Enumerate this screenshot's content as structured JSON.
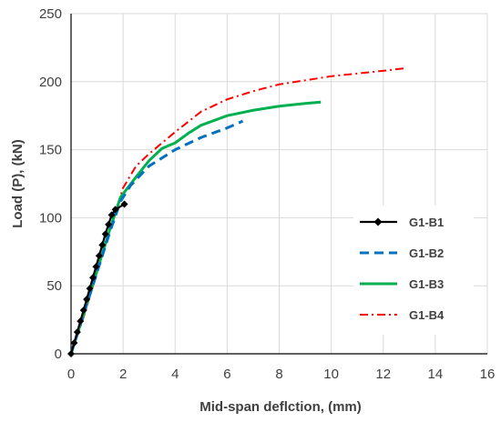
{
  "chart_data": {
    "type": "line",
    "title": "",
    "xlabel": "Mid-span deflction, (mm)",
    "ylabel": "Load (P), (kN)",
    "xlim": [
      0,
      16
    ],
    "ylim": [
      0,
      250
    ],
    "xticks": [
      0,
      2,
      4,
      6,
      8,
      10,
      12,
      14,
      16
    ],
    "yticks": [
      0,
      50,
      100,
      150,
      200,
      250
    ],
    "xtick_labels": [
      "0",
      "2",
      "4",
      "6",
      "8",
      "10",
      "12",
      "14",
      "16"
    ],
    "ytick_labels": [
      "0",
      "50",
      "100",
      "150",
      "200",
      "250"
    ],
    "grid": true,
    "legend_position": "center-right",
    "series": [
      {
        "name": "G1-B1",
        "color": "#000000",
        "style": "solid-diamond",
        "points": [
          [
            0,
            0
          ],
          [
            0.12,
            8
          ],
          [
            0.24,
            16
          ],
          [
            0.36,
            24
          ],
          [
            0.48,
            32
          ],
          [
            0.6,
            40
          ],
          [
            0.72,
            48
          ],
          [
            0.84,
            56
          ],
          [
            0.96,
            64
          ],
          [
            1.08,
            72
          ],
          [
            1.2,
            80
          ],
          [
            1.32,
            88
          ],
          [
            1.44,
            95
          ],
          [
            1.56,
            102
          ],
          [
            1.7,
            106
          ],
          [
            2.05,
            110
          ]
        ]
      },
      {
        "name": "G1-B2",
        "color": "#0070c0",
        "style": "dashed",
        "points": [
          [
            0,
            0
          ],
          [
            0.5,
            30
          ],
          [
            1.0,
            60
          ],
          [
            1.5,
            90
          ],
          [
            1.9,
            112
          ],
          [
            2.3,
            124
          ],
          [
            3.0,
            138
          ],
          [
            4.0,
            150
          ],
          [
            5.0,
            159
          ],
          [
            6.0,
            166
          ],
          [
            6.6,
            171
          ]
        ]
      },
      {
        "name": "G1-B3",
        "color": "#00b050",
        "style": "solid",
        "points": [
          [
            0,
            0
          ],
          [
            0.5,
            30
          ],
          [
            1.0,
            61
          ],
          [
            1.5,
            92
          ],
          [
            1.9,
            115
          ],
          [
            2.5,
            130
          ],
          [
            3.0,
            142
          ],
          [
            3.5,
            151
          ],
          [
            4.0,
            155
          ],
          [
            4.5,
            162
          ],
          [
            5.0,
            168
          ],
          [
            6.0,
            175
          ],
          [
            7.0,
            179
          ],
          [
            8.0,
            182
          ],
          [
            9.0,
            184
          ],
          [
            9.6,
            185
          ]
        ]
      },
      {
        "name": "G1-B4",
        "color": "#ff0000",
        "style": "dash-dot",
        "points": [
          [
            0,
            0
          ],
          [
            0.5,
            28
          ],
          [
            1.0,
            60
          ],
          [
            1.5,
            92
          ],
          [
            2.0,
            122
          ],
          [
            2.5,
            138
          ],
          [
            3.0,
            147
          ],
          [
            4.0,
            163
          ],
          [
            5.0,
            178
          ],
          [
            6.0,
            187
          ],
          [
            7.0,
            193
          ],
          [
            8.0,
            198
          ],
          [
            10.0,
            204
          ],
          [
            12.0,
            208
          ],
          [
            12.9,
            210
          ]
        ]
      }
    ]
  }
}
